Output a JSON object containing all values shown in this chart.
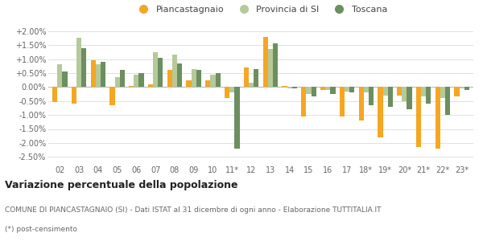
{
  "years": [
    "02",
    "03",
    "04",
    "05",
    "06",
    "07",
    "08",
    "09",
    "10",
    "11*",
    "12",
    "13",
    "14",
    "15",
    "16",
    "17",
    "18*",
    "19*",
    "20*",
    "21*",
    "22*",
    "23*"
  ],
  "piancastagnaio": [
    -0.55,
    -0.6,
    0.95,
    -0.65,
    0.05,
    0.1,
    0.6,
    0.25,
    0.25,
    -0.4,
    0.7,
    1.8,
    0.05,
    -1.05,
    -0.1,
    -1.05,
    -1.2,
    -1.8,
    -0.3,
    -2.15,
    -2.2,
    -0.35
  ],
  "provincia_si": [
    0.8,
    1.75,
    0.8,
    0.35,
    0.45,
    1.25,
    1.15,
    0.65,
    0.45,
    -0.2,
    0.15,
    1.35,
    -0.05,
    -0.25,
    -0.1,
    -0.15,
    -0.2,
    -0.3,
    -0.5,
    -0.35,
    -0.4,
    -0.05
  ],
  "toscana": [
    0.55,
    1.4,
    0.9,
    0.6,
    0.5,
    1.05,
    0.85,
    0.6,
    0.5,
    -2.2,
    0.65,
    1.55,
    -0.05,
    -0.35,
    -0.25,
    -0.2,
    -0.65,
    -0.7,
    -0.8,
    -0.6,
    -1.0,
    -0.1
  ],
  "color_piano": "#f5a623",
  "color_prov": "#b5c99a",
  "color_tosc": "#6b8f5e",
  "legend_labels": [
    "Piancastagnaio",
    "Provincia di SI",
    "Toscana"
  ],
  "title_bold": "Variazione percentuale della popolazione",
  "subtitle1": "COMUNE DI PIANCASTAGNAIO (SI) - Dati ISTAT al 31 dicembre di ogni anno - Elaborazione TUTTITALIA.IT",
  "subtitle2": "(*) post-censimento",
  "ylim": [
    -2.75,
    2.25
  ],
  "yticks": [
    -2.5,
    -2.0,
    -1.5,
    -1.0,
    -0.5,
    0.0,
    0.5,
    1.0,
    1.5,
    2.0
  ],
  "bg_color": "#ffffff",
  "grid_color": "#e0e0e0"
}
